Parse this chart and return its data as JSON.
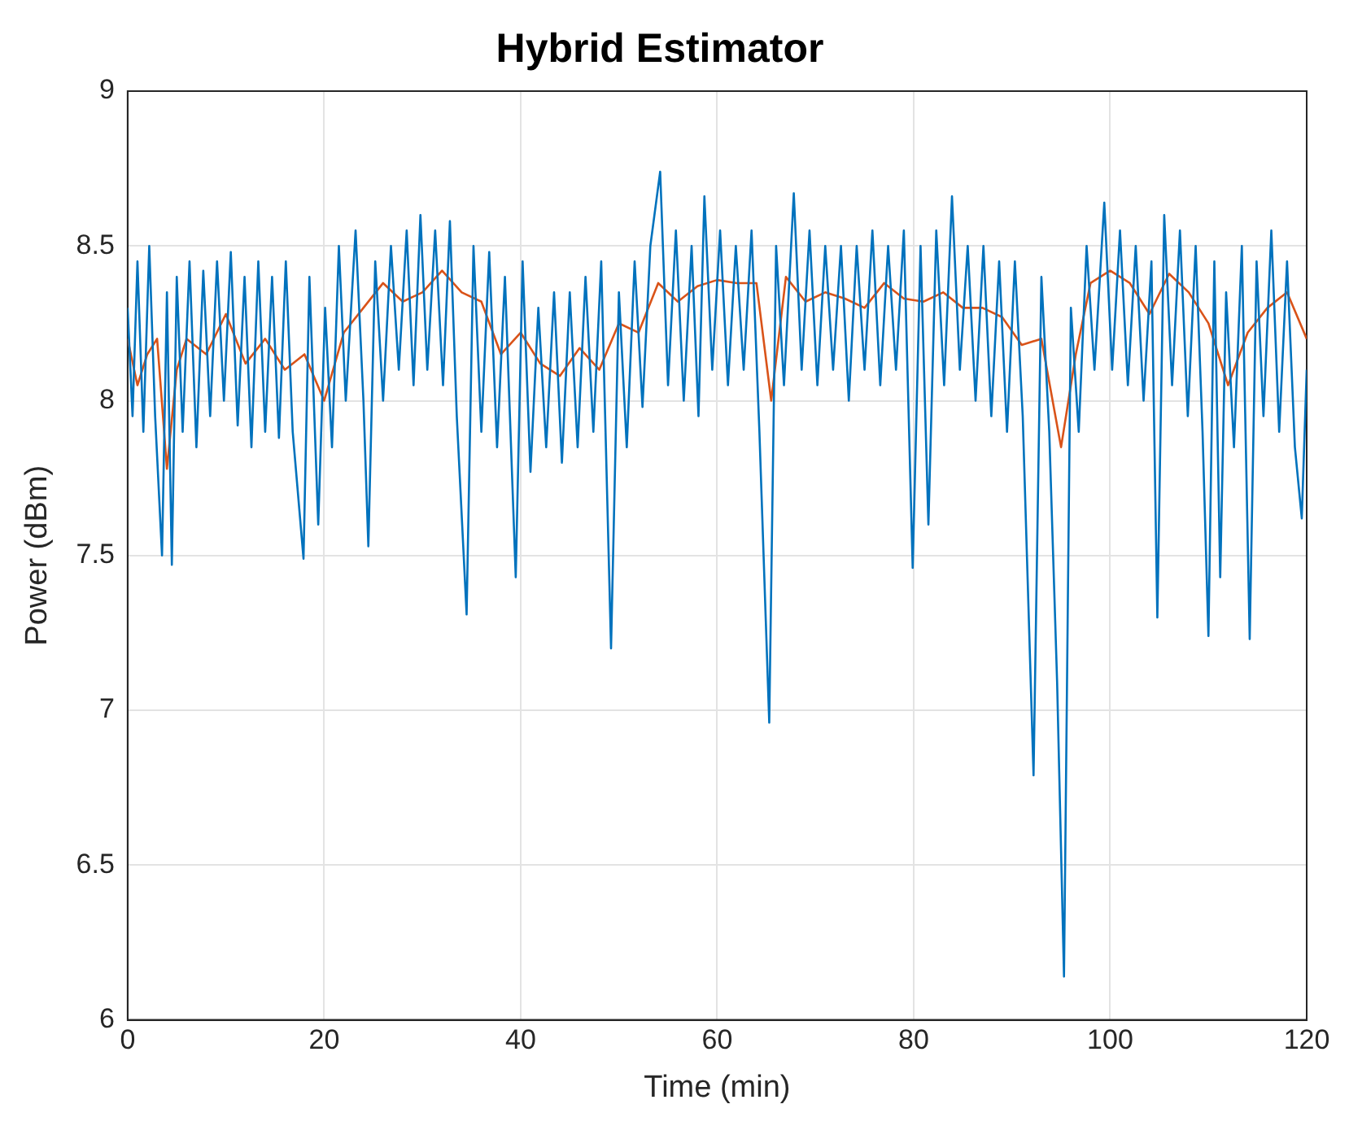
{
  "chart_data": {
    "type": "line",
    "title": "Hybrid Estimator",
    "xlabel": "Time (min)",
    "ylabel": "Power (dBm)",
    "xlim": [
      0,
      120
    ],
    "xticks": [
      0,
      20,
      40,
      60,
      80,
      100,
      120
    ],
    "ylim": [
      6,
      9
    ],
    "yticks": [
      6,
      6.5,
      7,
      7.5,
      8,
      8.5,
      9
    ],
    "grid": true,
    "legend": false,
    "marker": "none",
    "line_style": "solid",
    "series": [
      {
        "color": "#0072bd",
        "x": [
          0,
          0.5,
          1,
          1.6,
          2.2,
          2.8,
          3.5,
          4,
          4.5,
          5,
          5.6,
          6.3,
          7,
          7.7,
          8.4,
          9.1,
          9.8,
          10.5,
          11.2,
          11.9,
          12.6,
          13.3,
          14,
          14.7,
          15.4,
          16.1,
          16.8,
          17.9,
          18.5,
          19.4,
          20.1,
          20.8,
          21.5,
          22.2,
          23.2,
          24,
          24.5,
          25.2,
          26,
          26.8,
          27.6,
          28.4,
          29.1,
          29.8,
          30.5,
          31.3,
          32.1,
          32.8,
          33.5,
          34.5,
          35.2,
          36,
          36.8,
          37.6,
          38.4,
          39.5,
          40.2,
          41,
          41.8,
          42.6,
          43.4,
          44.2,
          45,
          45.8,
          46.6,
          47.4,
          48.2,
          49.2,
          50,
          50.8,
          51.6,
          52.4,
          53.2,
          54.2,
          55,
          55.8,
          56.6,
          57.4,
          58.1,
          58.7,
          59.5,
          60.3,
          61.1,
          61.9,
          62.7,
          63.5,
          64.3,
          65.3,
          66,
          66.8,
          67.8,
          68.6,
          69.4,
          70.2,
          71,
          71.8,
          72.6,
          73.4,
          74.2,
          75,
          75.8,
          76.6,
          77.4,
          78.2,
          79,
          79.9,
          80.7,
          81.5,
          82.3,
          83.1,
          83.9,
          84.7,
          85.5,
          86.3,
          87.1,
          87.9,
          88.7,
          89.5,
          90.3,
          91.1,
          92.2,
          93,
          93.8,
          94.6,
          95.3,
          96,
          96.8,
          97.6,
          98.4,
          99.4,
          100.2,
          101,
          101.8,
          102.6,
          103.4,
          104.2,
          104.8,
          105.5,
          106.3,
          107.1,
          107.9,
          108.7,
          109.4,
          110,
          110.6,
          111.2,
          111.8,
          112.6,
          113.4,
          114.2,
          114.9,
          115.6,
          116.4,
          117.2,
          118,
          118.8,
          119.5,
          120
        ],
        "values": [
          8.3,
          7.95,
          8.45,
          7.9,
          8.5,
          7.95,
          7.5,
          8.35,
          7.47,
          8.4,
          7.9,
          8.45,
          7.85,
          8.42,
          7.95,
          8.45,
          8.0,
          8.48,
          7.92,
          8.4,
          7.85,
          8.45,
          7.9,
          8.4,
          7.88,
          8.45,
          7.9,
          7.49,
          8.4,
          7.6,
          8.3,
          7.85,
          8.5,
          8.0,
          8.55,
          8.0,
          7.53,
          8.45,
          8.0,
          8.5,
          8.1,
          8.55,
          8.05,
          8.6,
          8.1,
          8.55,
          8.05,
          8.58,
          7.95,
          7.31,
          8.5,
          7.9,
          8.48,
          7.85,
          8.4,
          7.43,
          8.45,
          7.77,
          8.3,
          7.85,
          8.35,
          7.8,
          8.35,
          7.85,
          8.4,
          7.9,
          8.45,
          7.2,
          8.35,
          7.85,
          8.45,
          7.98,
          8.5,
          8.74,
          8.05,
          8.55,
          8.0,
          8.5,
          7.95,
          8.66,
          8.1,
          8.55,
          8.05,
          8.5,
          8.1,
          8.55,
          7.9,
          6.96,
          8.5,
          8.05,
          8.67,
          8.1,
          8.55,
          8.05,
          8.5,
          8.1,
          8.5,
          8.0,
          8.5,
          8.1,
          8.55,
          8.05,
          8.5,
          8.1,
          8.55,
          7.46,
          8.5,
          7.6,
          8.55,
          8.05,
          8.66,
          8.1,
          8.5,
          8.0,
          8.5,
          7.95,
          8.45,
          7.9,
          8.45,
          7.95,
          6.79,
          8.4,
          7.9,
          7.09,
          6.14,
          8.3,
          7.9,
          8.5,
          8.1,
          8.64,
          8.1,
          8.55,
          8.05,
          8.5,
          8.0,
          8.45,
          7.3,
          8.6,
          8.05,
          8.55,
          7.95,
          8.5,
          7.9,
          7.24,
          8.45,
          7.43,
          8.35,
          7.85,
          8.5,
          7.23,
          8.45,
          7.95,
          8.55,
          7.9,
          8.45,
          7.85,
          7.62,
          8.1
        ]
      },
      {
        "color": "#d95319",
        "x": [
          0,
          1,
          2,
          3,
          4,
          5,
          6,
          8,
          10,
          12,
          14,
          16,
          18,
          20,
          22,
          24,
          26,
          28,
          30,
          32,
          34,
          36,
          38,
          40,
          42,
          44,
          46,
          48,
          50,
          52,
          54,
          56,
          58,
          60,
          62,
          64,
          65.5,
          67,
          69,
          71,
          73,
          75,
          77,
          79,
          81,
          83,
          85,
          87,
          89,
          91,
          93,
          95,
          96.5,
          98,
          100,
          102,
          104,
          106,
          108,
          110,
          112,
          114,
          116,
          118,
          120
        ],
        "values": [
          8.2,
          8.05,
          8.15,
          8.2,
          7.78,
          8.1,
          8.2,
          8.15,
          8.28,
          8.12,
          8.2,
          8.1,
          8.15,
          8.0,
          8.22,
          8.3,
          8.38,
          8.32,
          8.35,
          8.42,
          8.35,
          8.32,
          8.15,
          8.22,
          8.12,
          8.08,
          8.17,
          8.1,
          8.25,
          8.22,
          8.38,
          8.32,
          8.37,
          8.39,
          8.38,
          8.38,
          8.0,
          8.4,
          8.32,
          8.35,
          8.33,
          8.3,
          8.38,
          8.33,
          8.32,
          8.35,
          8.3,
          8.3,
          8.27,
          8.18,
          8.2,
          7.85,
          8.15,
          8.38,
          8.42,
          8.38,
          8.28,
          8.41,
          8.35,
          8.25,
          8.05,
          8.22,
          8.3,
          8.35,
          8.2
        ]
      }
    ]
  }
}
